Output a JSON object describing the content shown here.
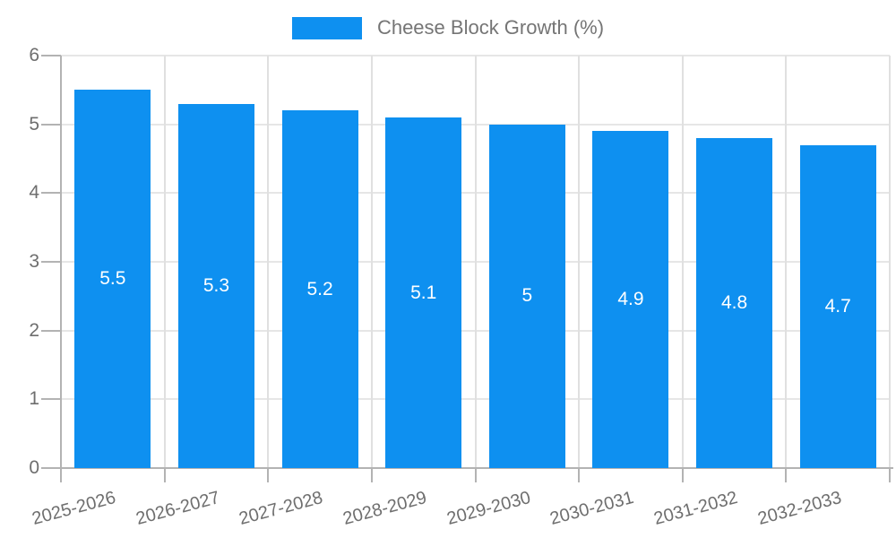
{
  "legend": {
    "label": "Cheese Block Growth (%)"
  },
  "chart_data": {
    "type": "bar",
    "title": "",
    "series_name": "Cheese Block Growth (%)",
    "categories": [
      "2025-2026",
      "2026-2027",
      "2027-2028",
      "2028-2029",
      "2029-2030",
      "2030-2031",
      "2031-2032",
      "2032-2033"
    ],
    "values": [
      5.5,
      5.3,
      5.2,
      5.1,
      5,
      4.9,
      4.8,
      4.7
    ],
    "bar_value_labels": [
      "5.5",
      "5.3",
      "5.2",
      "5.1",
      "5",
      "4.9",
      "4.8",
      "4.7"
    ],
    "xlabel": "",
    "ylabel": "",
    "ylim": [
      0,
      6
    ],
    "yticks": [
      "0",
      "1",
      "2",
      "3",
      "4",
      "5",
      "6"
    ],
    "grid": true,
    "legend_position": "top-center",
    "x_label_rotation_deg": -15,
    "colors": {
      "bar": "#0e90f0",
      "bar_label_text": "#ffffff",
      "grid_line_h": "#e6e6e6",
      "grid_line_v": "#e0e0e0",
      "axis_line": "#b3b3b3",
      "tick_text": "#6e6e6e",
      "legend_text": "#757575",
      "background": "#ffffff"
    }
  }
}
